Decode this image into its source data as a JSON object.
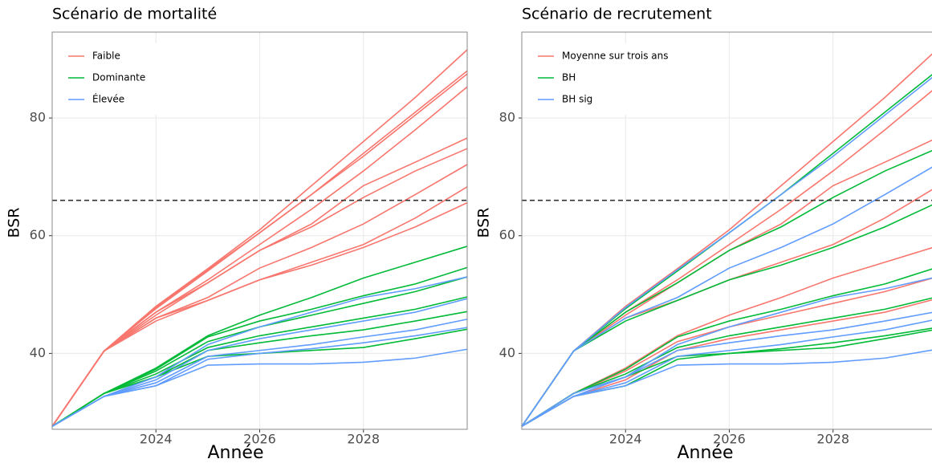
{
  "chart_data": [
    {
      "type": "line",
      "title": "Scénario de mortalité",
      "xlabel": "Année",
      "ylabel": "BSR",
      "x": [
        2022,
        2023,
        2024,
        2025,
        2026,
        2027,
        2028,
        2029,
        2030
      ],
      "xlim": [
        2022,
        2030
      ],
      "xticks": [
        2024,
        2026,
        2028
      ],
      "ylim": [
        27.1,
        94.6
      ],
      "yticks": [
        40,
        60,
        80
      ],
      "hline": 66,
      "grid": true,
      "legend": "top-left",
      "series": [
        {
          "name": "Faible",
          "color": "#f8766d",
          "lines": [
            [
              27.6,
              40.4,
              48.0,
              54.4,
              61.0,
              68.5,
              76.0,
              83.5,
              91.6
            ],
            [
              27.6,
              40.4,
              47.6,
              54.0,
              60.5,
              67.0,
              74.0,
              81.0,
              88.0
            ],
            [
              27.6,
              40.4,
              47.8,
              54.2,
              60.5,
              67.0,
              73.5,
              80.5,
              87.5
            ],
            [
              27.6,
              40.4,
              47.0,
              52.5,
              58.5,
              64.5,
              71.0,
              78.0,
              85.3
            ],
            [
              27.6,
              40.4,
              46.5,
              52.0,
              57.5,
              62.0,
              68.5,
              72.5,
              76.6
            ],
            [
              27.6,
              40.4,
              47.0,
              52.0,
              57.5,
              61.5,
              66.5,
              71.0,
              74.8
            ],
            [
              27.6,
              40.4,
              46.0,
              49.5,
              54.5,
              58.0,
              62.0,
              67.0,
              72.1
            ],
            [
              27.6,
              40.4,
              46.0,
              49.0,
              52.5,
              55.5,
              58.5,
              63.0,
              68.3
            ],
            [
              27.6,
              40.4,
              45.5,
              49.0,
              52.5,
              55.0,
              58.0,
              61.5,
              65.6
            ]
          ]
        },
        {
          "name": "Dominante",
          "color": "#00ba38",
          "lines": [
            [
              27.6,
              33.2,
              37.5,
              43.0,
              46.5,
              49.5,
              52.8,
              55.5,
              58.2
            ],
            [
              27.6,
              33.2,
              37.3,
              42.8,
              45.5,
              47.5,
              49.8,
              51.8,
              54.6
            ],
            [
              27.6,
              33.2,
              37.0,
              42.0,
              44.5,
              46.5,
              48.5,
              50.5,
              53.0
            ],
            [
              27.6,
              33.2,
              36.5,
              41.0,
              43.0,
              44.5,
              46.0,
              47.5,
              49.6
            ],
            [
              27.6,
              33.2,
              36.0,
              40.5,
              41.8,
              43.0,
              44.0,
              45.5,
              47.1
            ],
            [
              27.6,
              33.2,
              36.0,
              39.5,
              40.0,
              40.5,
              41.0,
              42.5,
              44.1
            ]
          ]
        },
        {
          "name": "Élevée",
          "color": "#619cff",
          "lines": [
            [
              27.6,
              32.7,
              36.0,
              41.5,
              44.5,
              47.0,
              49.5,
              51.0,
              53.0
            ],
            [
              27.6,
              32.7,
              35.5,
              40.5,
              42.5,
              44.0,
              45.5,
              47.0,
              49.3
            ],
            [
              27.6,
              32.7,
              35.0,
              39.5,
              40.5,
              41.5,
              42.8,
              44.0,
              45.8
            ],
            [
              27.6,
              32.7,
              34.5,
              39.0,
              40.0,
              40.8,
              41.8,
              43.0,
              44.4
            ],
            [
              27.6,
              32.7,
              34.5,
              38.0,
              38.2,
              38.2,
              38.5,
              39.2,
              40.7
            ]
          ]
        }
      ]
    },
    {
      "type": "line",
      "title": "Scénario de recrutement",
      "xlabel": "Année",
      "ylabel": "BSR",
      "x": [
        2022,
        2023,
        2024,
        2025,
        2026,
        2027,
        2028,
        2029,
        2030
      ],
      "xlim": [
        2022,
        2030
      ],
      "xticks": [
        2024,
        2026,
        2028
      ],
      "ylim": [
        27.1,
        94.6
      ],
      "yticks": [
        40,
        60,
        80
      ],
      "hline": 66,
      "grid": true,
      "legend": "top-left",
      "series": [
        {
          "name": "Moyenne sur trois ans",
          "color": "#f8766d",
          "lines": [
            [
              27.6,
              40.4,
              48.0,
              54.4,
              61.0,
              68.5,
              76.0,
              83.5,
              91.6
            ],
            [
              27.6,
              40.4,
              47.0,
              52.5,
              58.5,
              64.5,
              71.0,
              78.0,
              85.3
            ],
            [
              27.6,
              40.4,
              46.5,
              52.0,
              57.5,
              62.0,
              68.5,
              72.5,
              76.6
            ],
            [
              27.6,
              40.4,
              46.0,
              49.0,
              52.5,
              55.5,
              58.5,
              63.0,
              68.3
            ],
            [
              27.6,
              33.2,
              37.5,
              43.0,
              46.5,
              49.5,
              52.8,
              55.5,
              58.2
            ],
            [
              27.6,
              33.2,
              37.0,
              42.0,
              44.5,
              46.5,
              48.5,
              50.5,
              53.0
            ],
            [
              27.6,
              32.7,
              35.5,
              40.5,
              42.5,
              44.0,
              45.5,
              47.0,
              49.3
            ]
          ]
        },
        {
          "name": "BH",
          "color": "#00ba38",
          "lines": [
            [
              27.6,
              40.4,
              47.6,
              54.0,
              60.5,
              67.0,
              74.0,
              81.0,
              88.0
            ],
            [
              27.6,
              40.4,
              47.0,
              52.0,
              57.5,
              61.5,
              66.5,
              71.0,
              74.8
            ],
            [
              27.6,
              40.4,
              45.5,
              49.0,
              52.5,
              55.0,
              58.0,
              61.5,
              65.6
            ],
            [
              27.6,
              33.2,
              37.3,
              42.8,
              45.5,
              47.5,
              49.8,
              51.8,
              54.6
            ],
            [
              27.6,
              33.2,
              36.5,
              41.0,
              43.0,
              44.5,
              46.0,
              47.5,
              49.6
            ],
            [
              27.6,
              33.2,
              36.0,
              39.5,
              40.0,
              40.5,
              41.0,
              42.5,
              44.1
            ],
            [
              27.6,
              32.7,
              34.5,
              39.0,
              40.0,
              40.8,
              41.8,
              43.0,
              44.4
            ]
          ]
        },
        {
          "name": "BH sig",
          "color": "#619cff",
          "lines": [
            [
              27.6,
              40.4,
              47.8,
              54.2,
              60.5,
              67.0,
              73.5,
              80.5,
              87.5
            ],
            [
              27.6,
              40.4,
              46.0,
              49.5,
              54.5,
              58.0,
              62.0,
              67.0,
              72.1
            ],
            [
              27.6,
              33.2,
              36.0,
              40.5,
              41.8,
              43.0,
              44.0,
              45.5,
              47.1
            ],
            [
              27.6,
              32.7,
              36.0,
              41.5,
              44.5,
              47.0,
              49.5,
              51.0,
              53.0
            ],
            [
              27.6,
              32.7,
              35.0,
              39.5,
              40.5,
              41.5,
              42.8,
              44.0,
              45.8
            ],
            [
              27.6,
              32.7,
              34.5,
              38.0,
              38.2,
              38.2,
              38.5,
              39.2,
              40.7
            ]
          ]
        }
      ]
    }
  ]
}
